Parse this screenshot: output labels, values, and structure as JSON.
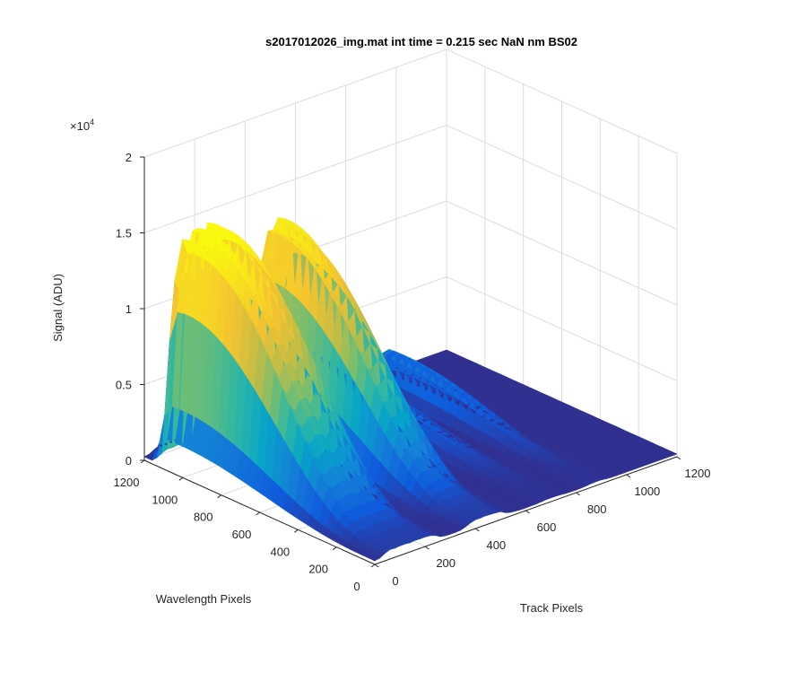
{
  "chart_data": {
    "type": "surface",
    "title": "s2017012026_img.mat int time = 0.215 sec  NaN nm BS02",
    "xlabel": "Track Pixels",
    "ylabel": "Wavelength Pixels",
    "zlabel": "Signal (ADU)",
    "z_multiplier": "×10",
    "z_exponent": "4",
    "x_ticks": [
      "0",
      "200",
      "400",
      "600",
      "800",
      "1000",
      "1200"
    ],
    "y_ticks": [
      "0",
      "200",
      "400",
      "600",
      "800",
      "1000",
      "1200"
    ],
    "z_ticks": [
      "0",
      "0.5",
      "1",
      "1.5",
      "2"
    ],
    "xlim": [
      0,
      1200
    ],
    "ylim": [
      0,
      1200
    ],
    "zlim": [
      0,
      20000
    ],
    "colormap": "parula",
    "grid": true,
    "peaks": [
      {
        "track_center": 140,
        "track_width": 260,
        "max_signal": 14800
      },
      {
        "track_center": 440,
        "track_width": 200,
        "max_signal": 13600
      },
      {
        "track_center": 700,
        "track_width": 120,
        "max_signal": 2200
      },
      {
        "track_center": 880,
        "track_width": 100,
        "max_signal": 2500
      }
    ],
    "wavelength_profile": {
      "start": 40,
      "end": 1150,
      "peak_at": 1020
    }
  }
}
